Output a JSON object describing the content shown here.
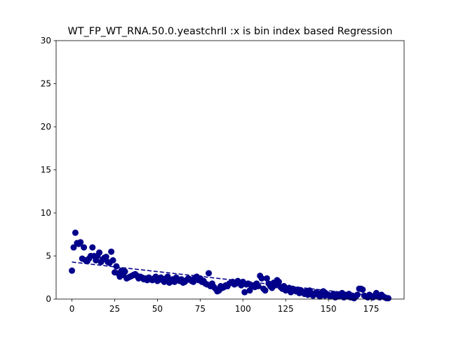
{
  "chart_data": {
    "type": "scatter",
    "title": "WT_FP_WT_RNA.50.0.yeastchrII :x is bin index based Regression",
    "xlim": [
      -9.25,
      194.25
    ],
    "xticks": [
      0,
      25,
      50,
      75,
      100,
      125,
      150,
      175
    ],
    "ylim": [
      0,
      30
    ],
    "yticks": [
      0,
      5,
      10,
      15,
      20,
      25,
      30
    ],
    "series": [
      {
        "type": "scatter",
        "color": "#00008b",
        "x": [
          0,
          1,
          2,
          3,
          4,
          5,
          6,
          7,
          8,
          9,
          10,
          11,
          12,
          13,
          14,
          15,
          16,
          17,
          18,
          19,
          20,
          21,
          22,
          23,
          24,
          25,
          26,
          27,
          28,
          29,
          30,
          31,
          32,
          33,
          34,
          35,
          36,
          37,
          38,
          39,
          40,
          41,
          42,
          43,
          44,
          45,
          46,
          47,
          48,
          49,
          50,
          51,
          52,
          53,
          54,
          55,
          56,
          57,
          58,
          59,
          60,
          61,
          62,
          63,
          64,
          65,
          66,
          67,
          68,
          69,
          70,
          71,
          72,
          73,
          74,
          75,
          76,
          77,
          78,
          79,
          80,
          81,
          82,
          83,
          84,
          85,
          86,
          87,
          88,
          89,
          90,
          91,
          92,
          93,
          94,
          95,
          96,
          97,
          98,
          99,
          100,
          101,
          102,
          103,
          104,
          105,
          106,
          107,
          108,
          109,
          110,
          111,
          112,
          113,
          114,
          115,
          116,
          117,
          118,
          119,
          120,
          121,
          122,
          123,
          124,
          125,
          126,
          127,
          128,
          129,
          130,
          131,
          132,
          133,
          134,
          135,
          136,
          137,
          138,
          139,
          140,
          141,
          142,
          143,
          144,
          145,
          146,
          147,
          148,
          149,
          150,
          151,
          152,
          153,
          154,
          155,
          156,
          157,
          158,
          159,
          160,
          161,
          162,
          163,
          164,
          165,
          166,
          167,
          168,
          169,
          170,
          171,
          172,
          173,
          174,
          175,
          176,
          177,
          178,
          179,
          180,
          181,
          182,
          183,
          184,
          185
        ],
        "values": [
          3.3,
          6.0,
          7.7,
          6.5,
          6.4,
          6.6,
          4.7,
          6.0,
          4.5,
          4.4,
          4.7,
          5.0,
          6.0,
          5.0,
          4.5,
          5.0,
          5.4,
          4.3,
          4.6,
          4.8,
          4.9,
          4.3,
          4.2,
          5.5,
          4.5,
          3.1,
          3.8,
          3.0,
          2.6,
          3.3,
          2.8,
          3.2,
          2.4,
          2.5,
          2.6,
          2.7,
          2.8,
          2.9,
          2.7,
          2.4,
          2.6,
          2.5,
          2.3,
          2.4,
          2.2,
          2.5,
          2.3,
          2.2,
          2.4,
          2.6,
          2.1,
          2.3,
          2.5,
          2.2,
          2.0,
          2.4,
          2.6,
          1.9,
          2.1,
          2.3,
          2.0,
          2.5,
          2.2,
          2.1,
          2.3,
          1.9,
          2.0,
          2.2,
          2.4,
          2.3,
          2.1,
          2.0,
          2.5,
          2.6,
          2.2,
          2.4,
          2.0,
          2.1,
          1.8,
          1.7,
          3.0,
          1.5,
          1.8,
          1.4,
          1.2,
          0.9,
          1.0,
          1.5,
          1.3,
          1.4,
          1.6,
          1.5,
          1.8,
          1.9,
          2.0,
          1.7,
          1.8,
          2.1,
          1.9,
          1.6,
          2.0,
          0.8,
          1.7,
          1.8,
          1.0,
          1.5,
          1.6,
          1.4,
          1.8,
          1.5,
          2.7,
          2.4,
          1.2,
          1.0,
          2.4,
          1.8,
          1.5,
          1.3,
          1.9,
          1.6,
          2.2,
          2.0,
          1.4,
          1.2,
          1.5,
          1.0,
          1.1,
          1.3,
          0.8,
          1.2,
          1.0,
          0.9,
          1.1,
          0.7,
          1.0,
          0.8,
          0.6,
          0.9,
          0.5,
          1.0,
          0.7,
          0.4,
          0.6,
          0.8,
          0.5,
          0.3,
          0.7,
          0.9,
          0.4,
          0.6,
          0.5,
          0.3,
          0.4,
          0.6,
          0.2,
          0.5,
          0.3,
          0.4,
          0.7,
          0.2,
          0.5,
          0.3,
          0.6,
          0.2,
          0.4,
          0.1,
          0.3,
          0.5,
          1.2,
          1.2,
          1.1,
          0.4,
          0.3,
          0.2,
          0.5,
          0.3,
          0.2,
          0.4,
          0.7,
          0.3,
          0.2,
          0.5,
          0.3,
          0.2,
          0.1,
          0.1
        ]
      },
      {
        "type": "line",
        "color": "#00008b",
        "linestyle": "dashed",
        "x": [
          0,
          185
        ],
        "values": [
          4.3,
          0.2
        ]
      }
    ]
  }
}
